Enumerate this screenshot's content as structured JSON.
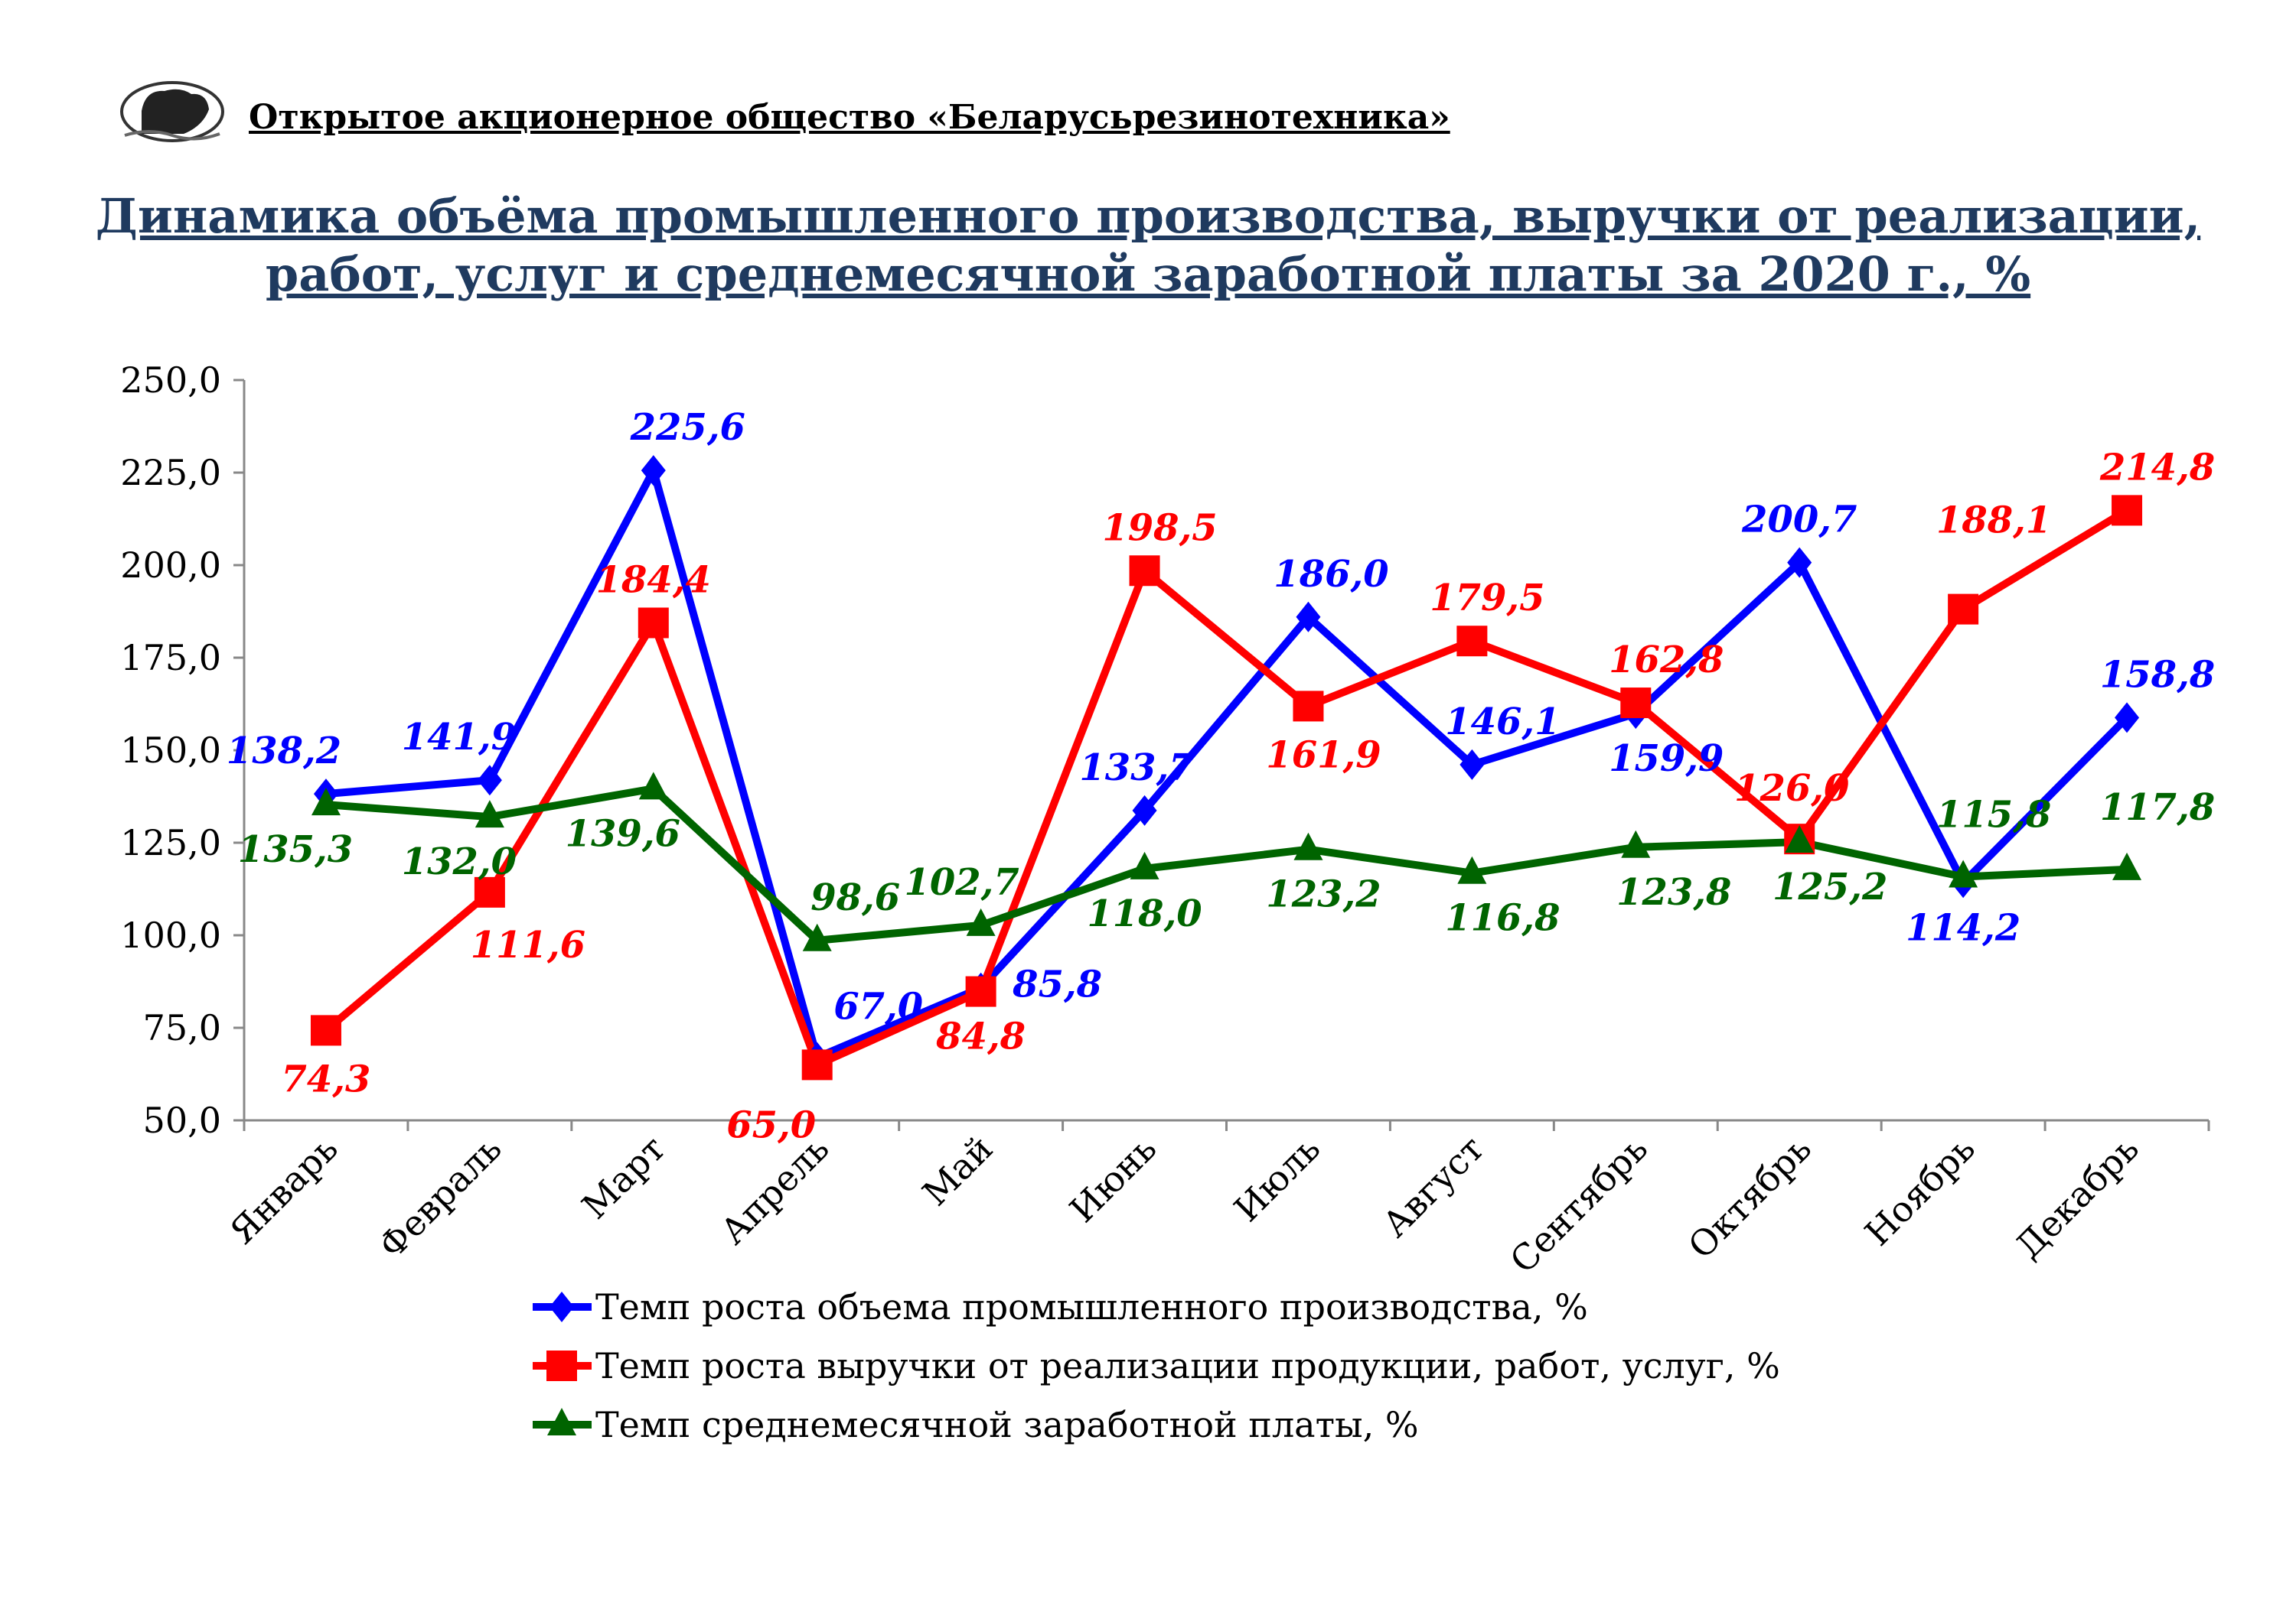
{
  "header": {
    "company": "Открытое акционерное общество «Беларусьрезинотехника»",
    "title_line1": "Динамика объёма промышленного производства, выручки от реализации,",
    "title_line2": "работ, услуг и среднемесячной заработной платы за 2020 г., %"
  },
  "chart_data": {
    "type": "line",
    "title": "Динамика объёма промышленного производства, выручки от реализации, работ, услуг и среднемесячной заработной платы за 2020 г., %",
    "xlabel": "",
    "ylabel": "",
    "ylim": [
      50,
      250
    ],
    "yticks": [
      "50,0",
      "75,0",
      "100,0",
      "125,0",
      "150,0",
      "175,0",
      "200,0",
      "225,0",
      "250,0"
    ],
    "grid": false,
    "legend_position": "bottom",
    "categories": [
      "Январь",
      "Февраль",
      "Март",
      "Апрель",
      "Май",
      "Июнь",
      "Июль",
      "Август",
      "Сентябрь",
      "Октябрь",
      "Ноябрь",
      "Декабрь"
    ],
    "series": [
      {
        "name": "Темп роста объема промышленного производства, %",
        "color": "#0000ff",
        "marker": "diamond",
        "values": [
          138.2,
          141.9,
          225.6,
          67.0,
          85.8,
          133.7,
          186.0,
          146.1,
          159.9,
          200.7,
          114.2,
          158.8
        ],
        "labels": [
          "138,2",
          "141,9",
          "225,6",
          "67,0",
          "85,8",
          "133,7",
          "186,0",
          "146,1",
          "159,9",
          "200,7",
          "114,2",
          "158,8"
        ]
      },
      {
        "name": "Темп роста выручки от реализации продукции, работ, услуг, %",
        "color": "#ff0000",
        "marker": "square",
        "values": [
          74.3,
          111.6,
          184.4,
          65.0,
          84.8,
          198.5,
          161.9,
          179.5,
          162.8,
          126.0,
          188.1,
          214.8
        ],
        "labels": [
          "74,3",
          "111,6",
          "184,4",
          "65,0",
          "84,8",
          "198,5",
          "161,9",
          "179,5",
          "162,8",
          "126,0",
          "188,1",
          "214,8"
        ]
      },
      {
        "name": "Темп среднемесячной заработной платы, %",
        "color": "#006400",
        "marker": "triangle",
        "values": [
          135.3,
          132.0,
          139.6,
          98.6,
          102.7,
          118.0,
          123.2,
          116.8,
          123.8,
          125.2,
          115.8,
          117.8
        ],
        "labels": [
          "135,3",
          "132,0",
          "139,6",
          "98,6",
          "102,7",
          "118,0",
          "123,2",
          "116,8",
          "123,8",
          "125,2",
          "115,8",
          "117,8"
        ]
      }
    ]
  }
}
